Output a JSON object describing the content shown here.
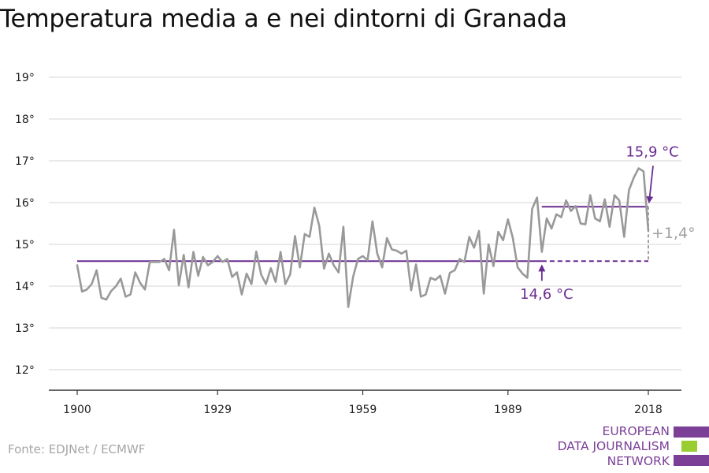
{
  "title": "Temperatura media a e nei dintorni di Granada",
  "source": "Fonte: EDJNet / ECMWF",
  "logo": {
    "lines": [
      "EUROPEAN",
      "DATA JOURNALISM",
      "NETWORK"
    ],
    "colors": [
      "#7b3f98",
      "#9acd32",
      "#7b3f98"
    ]
  },
  "colors": {
    "series": "#999999",
    "baseline": "#6a2c91",
    "annotation_purple": "#6a2c91",
    "annotation_gray": "#a0a0a0",
    "grid": "#dddddd",
    "axis": "#333333"
  },
  "chart_data": {
    "type": "line",
    "title": "Temperatura media a e nei dintorni di Granada",
    "xlabel": "",
    "ylabel": "",
    "xlim": [
      1900,
      2018
    ],
    "ylim": [
      12,
      19
    ],
    "x_ticks": [
      1900,
      1929,
      1959,
      1989,
      2018
    ],
    "y_ticks": [
      12,
      13,
      14,
      15,
      16,
      17,
      18,
      19
    ],
    "y_tick_labels": [
      "12°",
      "13°",
      "14°",
      "15°",
      "16°",
      "17°",
      "18°",
      "19°"
    ],
    "grid": true,
    "series": [
      {
        "x": [
          1900,
          1901,
          1902,
          1903,
          1904,
          1905,
          1906,
          1907,
          1908,
          1909,
          1910,
          1911,
          1912,
          1913,
          1914,
          1915,
          1916,
          1917,
          1918,
          1919,
          1920,
          1921,
          1922,
          1923,
          1924,
          1925,
          1926,
          1927,
          1928,
          1929,
          1930,
          1931,
          1932,
          1933,
          1934,
          1935,
          1936,
          1937,
          1938,
          1939,
          1940,
          1941,
          1942,
          1943,
          1944,
          1945,
          1946,
          1947,
          1948,
          1949,
          1950,
          1951,
          1952,
          1953,
          1954,
          1955,
          1956,
          1957,
          1958,
          1959,
          1960,
          1961,
          1962,
          1963,
          1964,
          1965,
          1966,
          1967,
          1968,
          1969,
          1970,
          1971,
          1972,
          1973,
          1974,
          1975,
          1976,
          1977,
          1978,
          1979,
          1980,
          1981,
          1982,
          1983,
          1984,
          1985,
          1986,
          1987,
          1988,
          1989,
          1990,
          1991,
          1992,
          1993,
          1994,
          1995,
          1996,
          1997,
          1998,
          1999,
          2000,
          2001,
          2002,
          2003,
          2004,
          2005,
          2006,
          2007,
          2008,
          2009,
          2010,
          2011,
          2012,
          2013,
          2014,
          2015,
          2016,
          2017,
          2018
        ],
        "values": [
          14.5,
          13.87,
          13.92,
          14.05,
          14.38,
          13.72,
          13.68,
          13.88,
          14.0,
          14.18,
          13.75,
          13.8,
          14.33,
          14.08,
          13.92,
          14.58,
          14.58,
          14.58,
          14.65,
          14.38,
          15.35,
          14.02,
          14.75,
          13.97,
          14.82,
          14.25,
          14.7,
          14.5,
          14.58,
          14.72,
          14.58,
          14.65,
          14.22,
          14.33,
          13.8,
          14.3,
          14.05,
          14.83,
          14.28,
          14.05,
          14.43,
          14.1,
          14.82,
          14.05,
          14.28,
          15.2,
          14.45,
          15.25,
          15.18,
          15.88,
          15.45,
          14.42,
          14.78,
          14.5,
          14.33,
          15.42,
          13.5,
          14.22,
          14.65,
          14.72,
          14.62,
          15.55,
          14.78,
          14.45,
          15.15,
          14.88,
          14.85,
          14.78,
          14.85,
          13.9,
          14.52,
          13.75,
          13.8,
          14.2,
          14.15,
          14.25,
          13.82,
          14.32,
          14.38,
          14.65,
          14.58,
          15.18,
          14.92,
          15.32,
          13.82,
          15.0,
          14.48,
          15.3,
          15.1,
          15.6,
          15.15,
          14.45,
          14.3,
          14.2,
          15.85,
          16.12,
          14.82,
          15.62,
          15.38,
          15.72,
          15.65,
          16.05,
          15.8,
          15.92,
          15.5,
          15.48,
          16.18,
          15.62,
          15.55,
          16.08,
          15.42,
          16.18,
          16.05,
          15.18,
          16.3,
          16.6,
          16.82,
          16.75,
          15.32
        ]
      }
    ],
    "baseline": {
      "value": 14.6,
      "solid_until": 1996,
      "label": "14,6 °C"
    },
    "recent": {
      "value": 15.9,
      "from": 1996,
      "to": 2018,
      "label": "15,9 °C"
    },
    "difference_label": "+1,4°"
  }
}
